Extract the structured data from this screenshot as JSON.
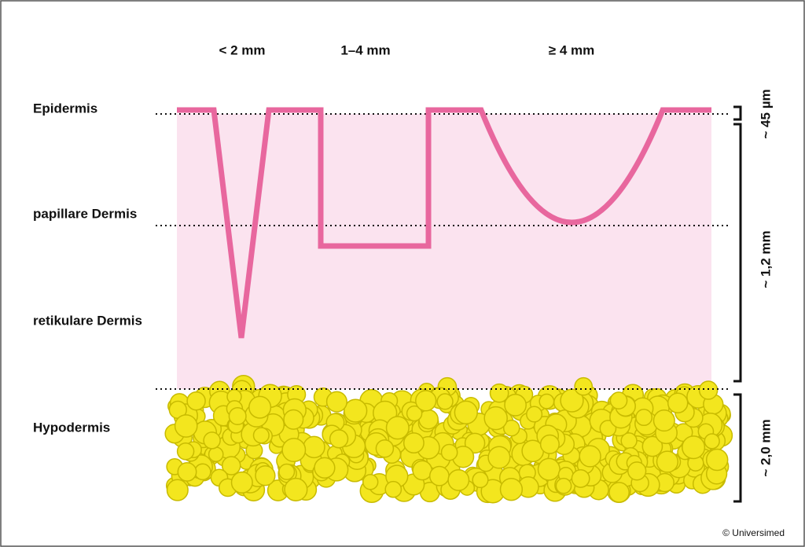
{
  "columns": [
    "< 2 mm",
    "1–4 mm",
    "≥ 4 mm"
  ],
  "layers": [
    "Epidermis",
    "papillare Dermis",
    "retikulare Dermis",
    "Hypodermis"
  ],
  "measurements": [
    "~ 45 µm",
    "~ 1,2 mm",
    "~ 2,0 mm"
  ],
  "copyright": "© Universimed"
}
